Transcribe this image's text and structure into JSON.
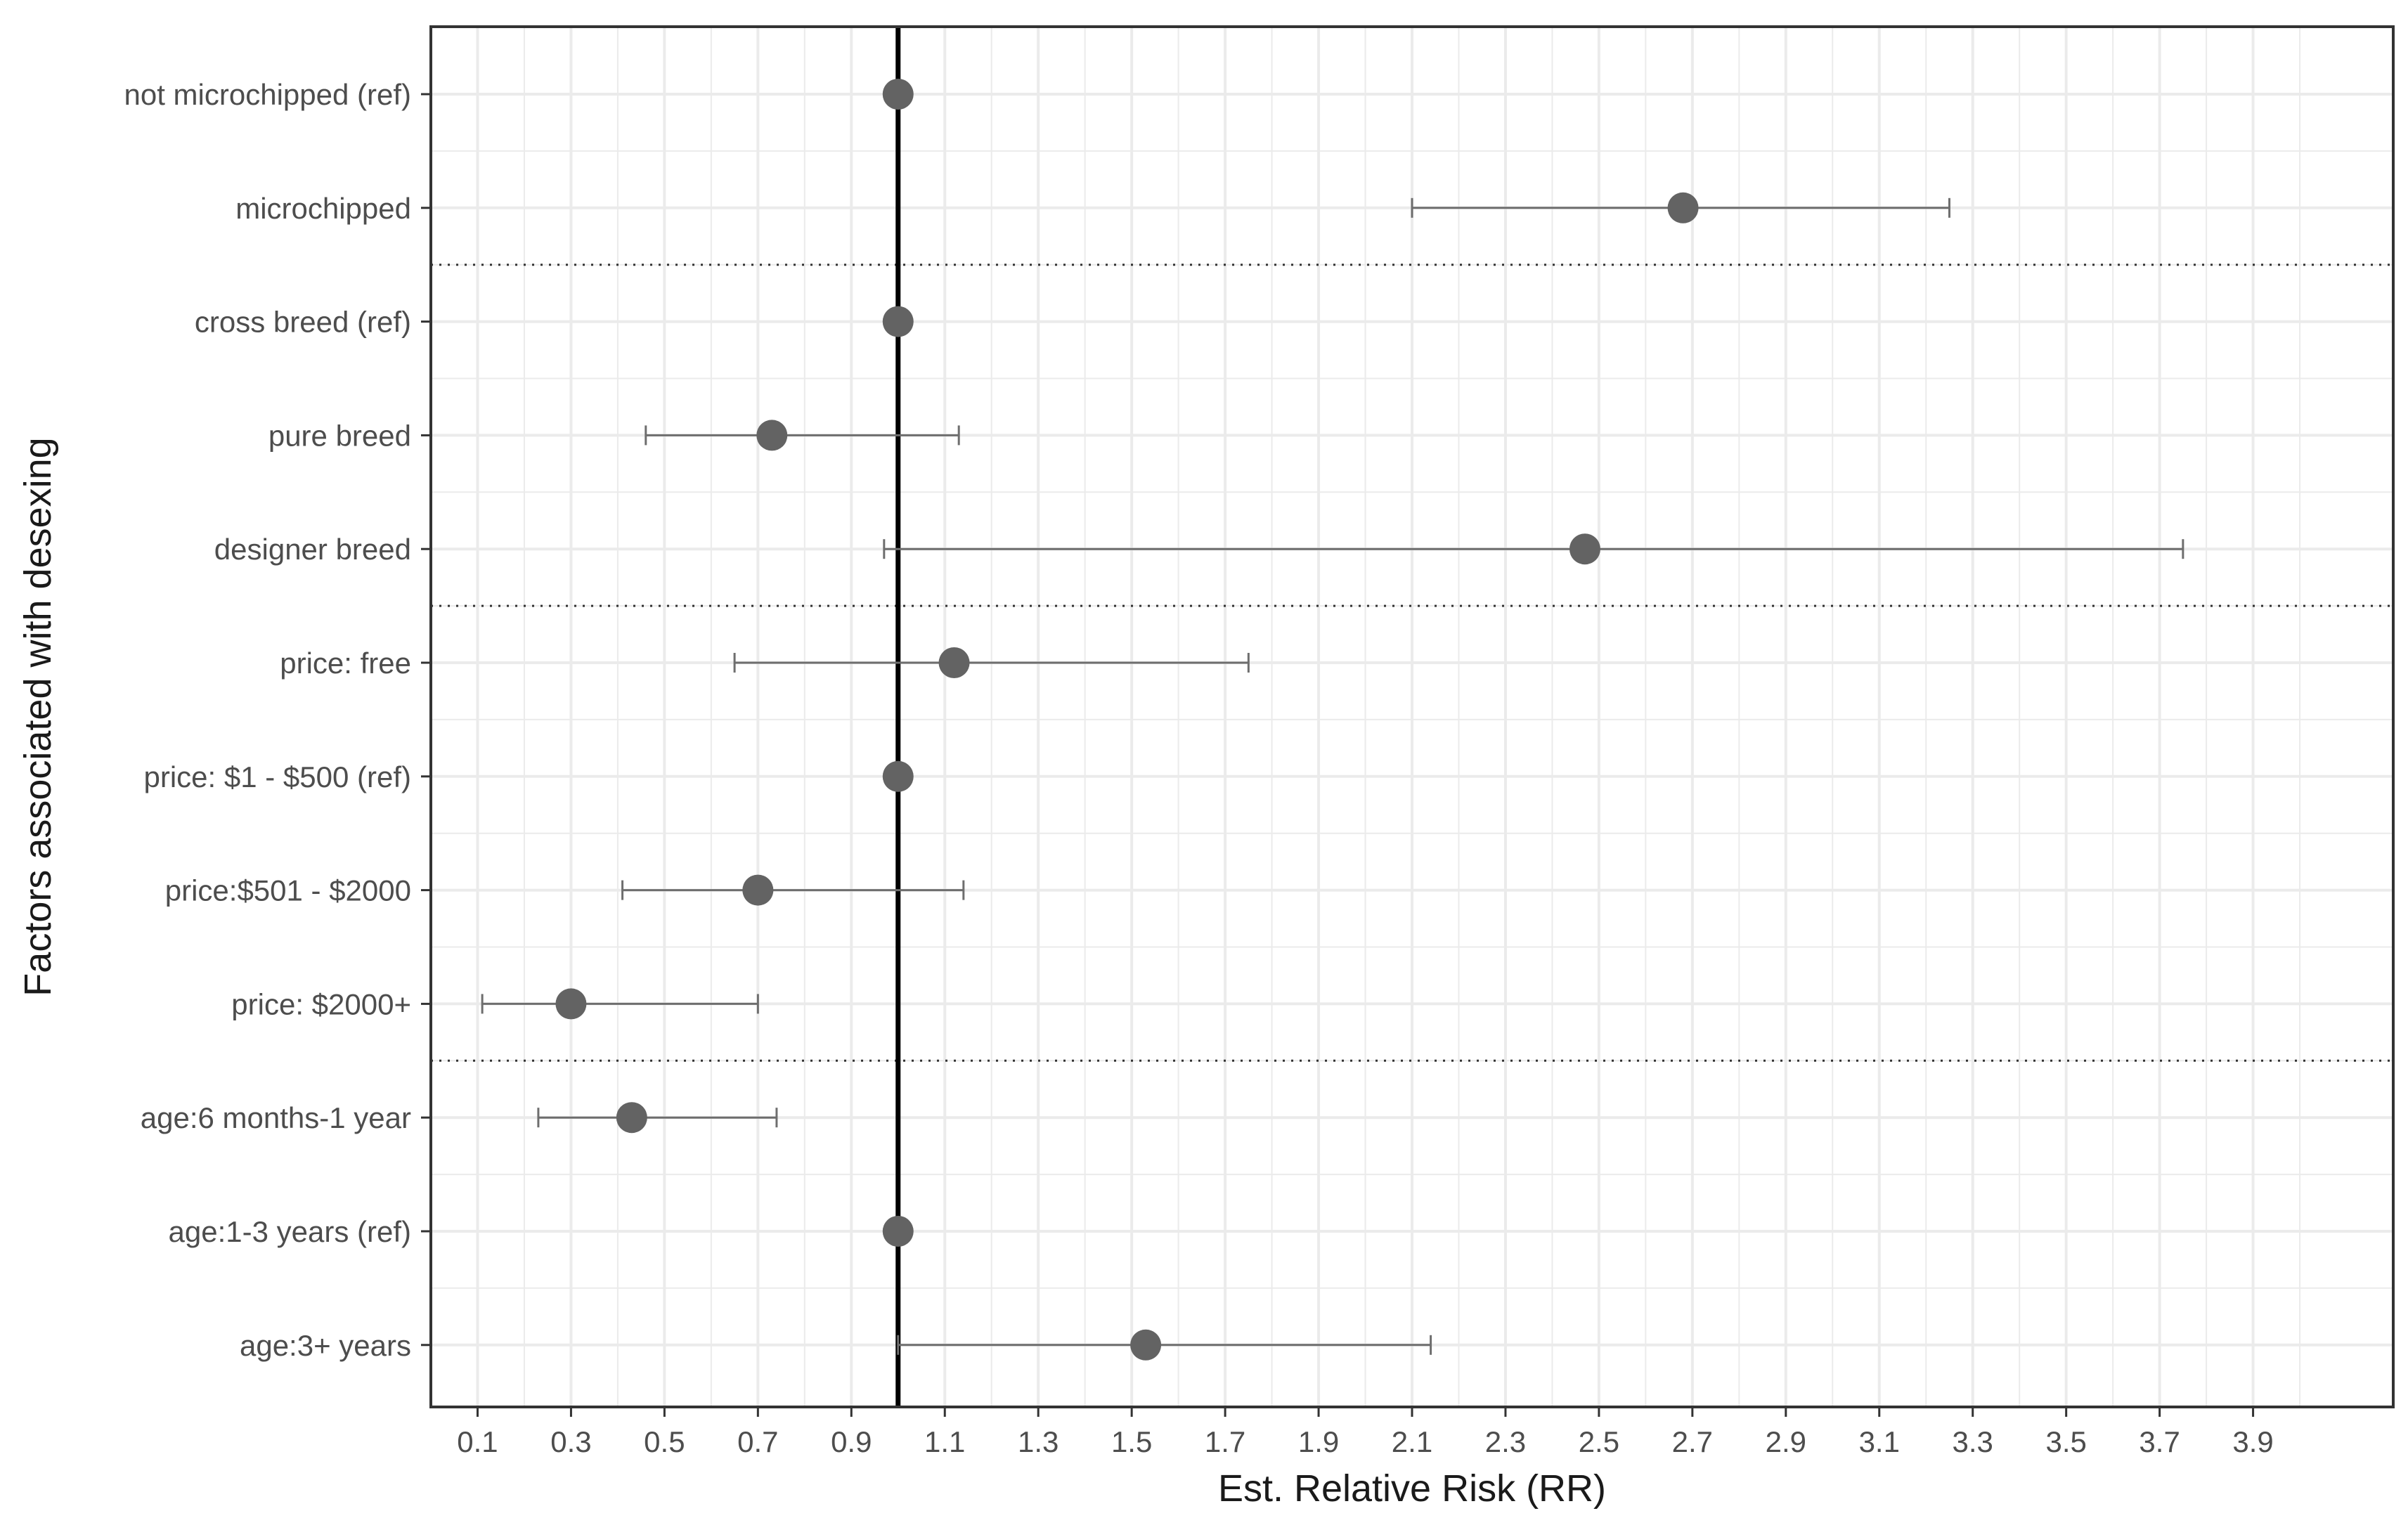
{
  "chart_data": {
    "type": "scatter",
    "subtype": "forest-plot",
    "xlabel": "Est. Relative Risk (RR)",
    "ylabel": "Factors associated with desexing",
    "xlim": [
      0,
      4.2
    ],
    "x_ticks": [
      0.1,
      0.3,
      0.5,
      0.7,
      0.9,
      1.1,
      1.3,
      1.5,
      1.7,
      1.9,
      2.1,
      2.3,
      2.5,
      2.7,
      2.9,
      3.1,
      3.3,
      3.5,
      3.7,
      3.9
    ],
    "reference_line_x": 1.0,
    "grid": true,
    "group_separators_after_index": [
      1,
      4,
      8
    ],
    "rows": [
      {
        "label": "not microchipped (ref)",
        "rr": 1.0,
        "lower": null,
        "upper": null
      },
      {
        "label": "microchipped",
        "rr": 2.68,
        "lower": 2.1,
        "upper": 3.25
      },
      {
        "label": "cross breed (ref)",
        "rr": 1.0,
        "lower": null,
        "upper": null
      },
      {
        "label": "pure breed",
        "rr": 0.73,
        "lower": 0.46,
        "upper": 1.13
      },
      {
        "label": "designer breed",
        "rr": 2.47,
        "lower": 0.97,
        "upper": 3.75
      },
      {
        "label": "price: free",
        "rr": 1.12,
        "lower": 0.65,
        "upper": 1.75
      },
      {
        "label": "price: $1 - $500 (ref)",
        "rr": 1.0,
        "lower": null,
        "upper": null
      },
      {
        "label": "price:$501 - $2000",
        "rr": 0.7,
        "lower": 0.41,
        "upper": 1.14
      },
      {
        "label": "price: $2000+",
        "rr": 0.3,
        "lower": 0.11,
        "upper": 0.7
      },
      {
        "label": "age:6 months-1 year",
        "rr": 0.43,
        "lower": 0.23,
        "upper": 0.74
      },
      {
        "label": "age:1-3 years (ref)",
        "rr": 1.0,
        "lower": null,
        "upper": null
      },
      {
        "label": "age:3+ years",
        "rr": 1.53,
        "lower": 1.0,
        "upper": 2.14
      }
    ],
    "colors": {
      "point": "#636363",
      "errorbar": "#6e6e6e",
      "reference_line": "#000000",
      "grid": "#ebebeb",
      "panel_border": "#333333",
      "separator": "#333333"
    }
  }
}
